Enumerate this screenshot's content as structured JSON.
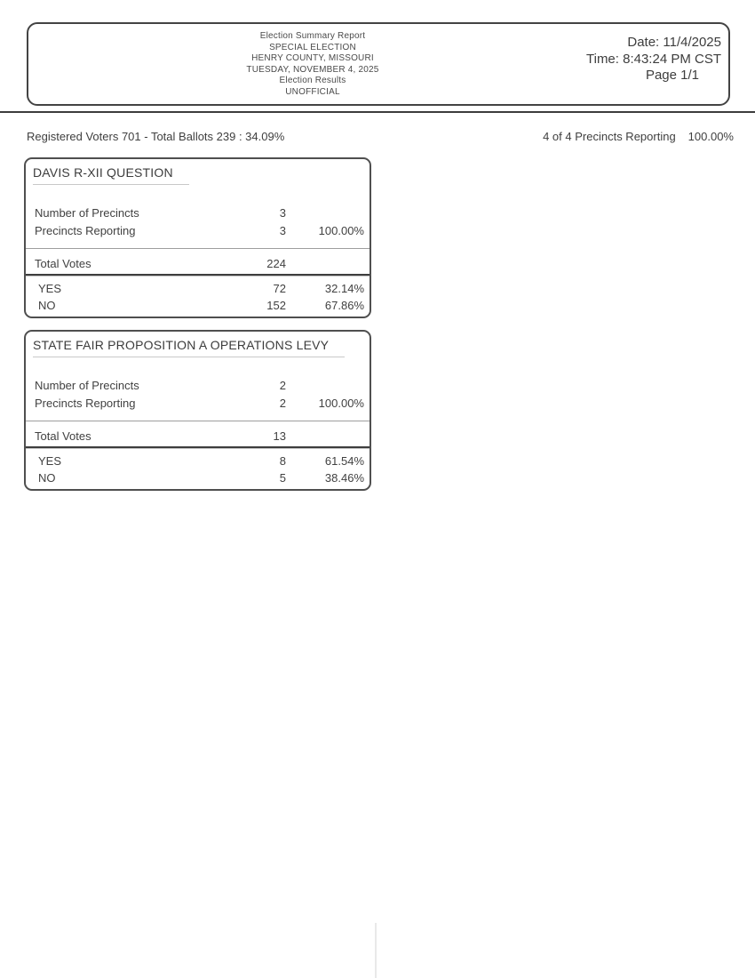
{
  "header": {
    "center_lines": [
      "Election Summary Report",
      "SPECIAL ELECTION",
      "HENRY COUNTY, MISSOURI",
      "TUESDAY, NOVEMBER 4, 2025",
      "Election Results",
      "UNOFFICIAL"
    ],
    "date_label": "Date: 11/4/2025",
    "time_label": "Time: 8:43:24 PM CST",
    "page_label": "Page 1/1"
  },
  "summary": {
    "left_text": "Registered Voters 701 - Total Ballots 239 : 34.09%",
    "right_label": "4 of 4 Precincts Reporting",
    "right_pct": "100.00%"
  },
  "contests": [
    {
      "title": "DAVIS R-XII QUESTION",
      "stats": [
        {
          "label": "Number of Precincts",
          "value": "3",
          "pct": ""
        },
        {
          "label": "Precincts Reporting",
          "value": "3",
          "pct": "100.00%"
        }
      ],
      "total": {
        "label": "Total Votes",
        "value": "224"
      },
      "choices": [
        {
          "label": "YES",
          "votes": "72",
          "pct": "32.14%"
        },
        {
          "label": "NO",
          "votes": "152",
          "pct": "67.86%"
        }
      ]
    },
    {
      "title": "STATE FAIR PROPOSITION A OPERATIONS LEVY",
      "stats": [
        {
          "label": "Number of Precincts",
          "value": "2",
          "pct": ""
        },
        {
          "label": "Precincts Reporting",
          "value": "2",
          "pct": "100.00%"
        }
      ],
      "total": {
        "label": "Total Votes",
        "value": "13"
      },
      "choices": [
        {
          "label": "YES",
          "votes": "8",
          "pct": "61.54%"
        },
        {
          "label": "NO",
          "votes": "5",
          "pct": "38.46%"
        }
      ]
    }
  ]
}
